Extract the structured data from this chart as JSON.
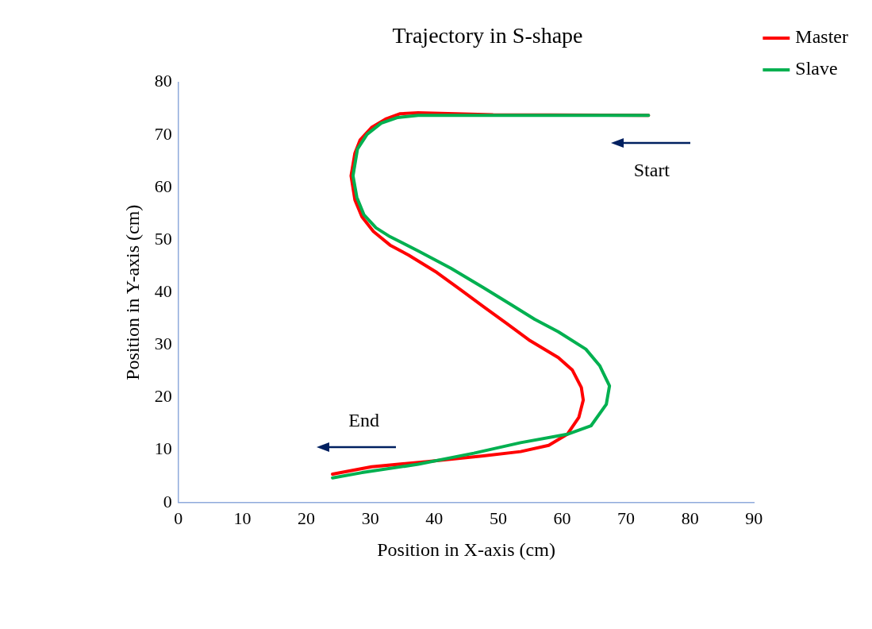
{
  "chart_data": {
    "type": "line",
    "title": "Trajectory in S-shape",
    "xlabel": "Position in X-axis (cm)",
    "ylabel": "Position in Y-axis (cm)",
    "xlim": [
      0,
      90
    ],
    "xticks": [
      0,
      10,
      20,
      30,
      40,
      50,
      60,
      70,
      80,
      90
    ],
    "ylim": [
      0,
      80
    ],
    "yticks": [
      0,
      10,
      20,
      30,
      40,
      50,
      60,
      70,
      80
    ],
    "grid": false,
    "legend": "top right",
    "marker": "none",
    "line_style": "solid",
    "annotations": [
      "Start",
      "End"
    ],
    "series": [
      {
        "name": "Master",
        "color": "#ff0000",
        "x": [
          73.5,
          49.2,
          37.5,
          34.6,
          32.4,
          30.2,
          28.4,
          27.6,
          27.0,
          27.6,
          28.7,
          30.5,
          33.1,
          36.0,
          40.4,
          44.0,
          47.7,
          51.3,
          55.0,
          59.4,
          61.6,
          63.0,
          63.3,
          62.6,
          60.8,
          57.9,
          53.5,
          47.7,
          38.9,
          30.2,
          24.1
        ],
        "values": [
          73.7,
          73.8,
          74.2,
          74.0,
          73.0,
          71.4,
          69.0,
          66.5,
          62.2,
          57.6,
          54.4,
          51.6,
          49.0,
          47.1,
          43.8,
          40.6,
          37.3,
          34.1,
          30.8,
          27.6,
          25.2,
          21.9,
          19.5,
          16.2,
          13.0,
          10.9,
          9.7,
          8.9,
          7.8,
          6.8,
          5.4
        ]
      },
      {
        "name": "Slave",
        "color": "#00b050",
        "x": [
          73.5,
          37.5,
          34.3,
          31.7,
          29.5,
          28.0,
          27.3,
          27.9,
          29.0,
          30.9,
          33.1,
          37.5,
          42.6,
          47.7,
          52.1,
          55.7,
          59.4,
          63.7,
          65.9,
          67.4,
          66.9,
          64.5,
          60.8,
          53.5,
          46.2,
          37.5,
          28.7,
          24.1
        ],
        "values": [
          73.7,
          73.7,
          73.3,
          72.2,
          70.1,
          67.3,
          62.2,
          58.1,
          54.8,
          52.3,
          50.6,
          47.9,
          44.6,
          40.9,
          37.6,
          34.9,
          32.5,
          29.2,
          26.0,
          22.2,
          18.7,
          14.6,
          13.0,
          11.4,
          9.4,
          7.3,
          5.7,
          4.7
        ]
      }
    ]
  }
}
